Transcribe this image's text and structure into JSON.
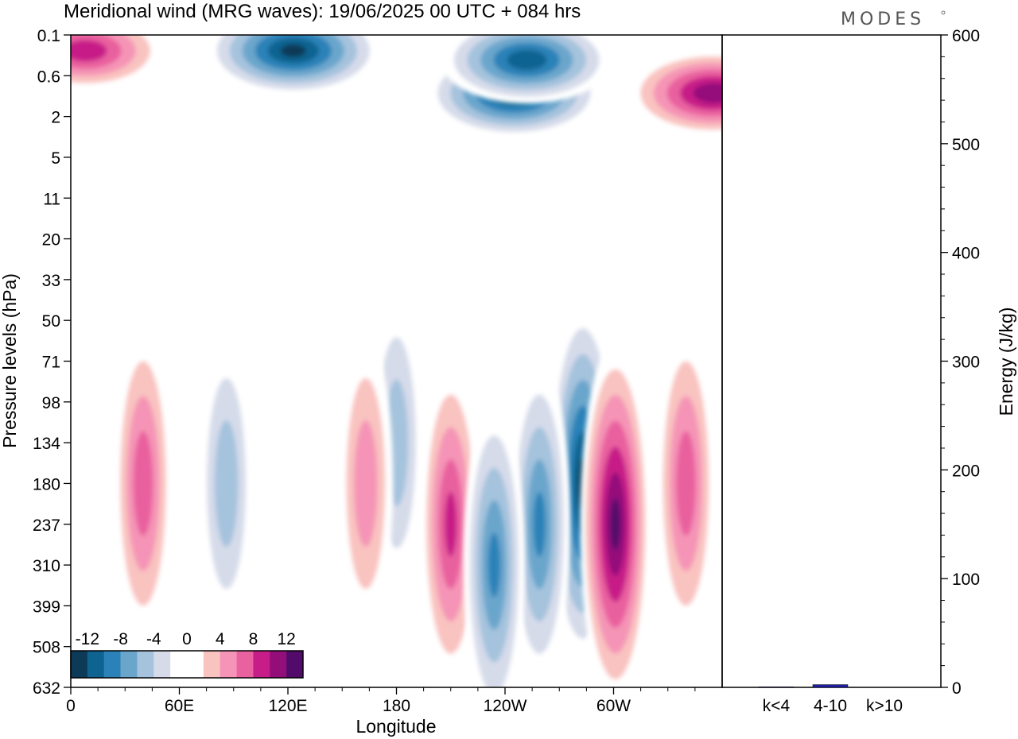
{
  "title": "Meridional wind (MRG waves):  19/06/2025  00 UTC  + 084 hrs",
  "logo": "MODES",
  "chart_data": [
    {
      "type": "heatmap",
      "xlabel": "Longitude",
      "ylabel": "Pressure levels (hPa)",
      "x_tick_labels": [
        "0",
        "60E",
        "120E",
        "180",
        "120W",
        "60W"
      ],
      "y_tick_labels": [
        "0.1",
        "0.6",
        "2",
        "5",
        "11",
        "20",
        "33",
        "50",
        "71",
        "98",
        "134",
        "180",
        "237",
        "310",
        "399",
        "508",
        "632"
      ],
      "colorbar": {
        "labels": [
          "-12",
          "-8",
          "-4",
          "0",
          "4",
          "8",
          "12"
        ],
        "colors": [
          "#0d3b57",
          "#0f6391",
          "#2b82b8",
          "#6aa6cc",
          "#a5c3dd",
          "#d6dbea",
          "#ffffff",
          "#ffffff",
          "#f9c3c0",
          "#f594b6",
          "#e9619f",
          "#c71d88",
          "#940e7a",
          "#520b6b"
        ]
      },
      "features": [
        {
          "sign": "negative",
          "lon": 283,
          "level": 180,
          "value": -13
        },
        {
          "sign": "positive",
          "lon": 301,
          "level": 237,
          "value": 13
        },
        {
          "sign": "negative",
          "lon": 259,
          "level": 237,
          "value": -9
        },
        {
          "sign": "positive",
          "lon": 210,
          "level": 237,
          "value": 9
        },
        {
          "sign": "negative",
          "lon": 234,
          "level": 310,
          "value": -9
        },
        {
          "sign": "positive",
          "lon": 340,
          "level": 180,
          "value": 8
        },
        {
          "sign": "negative",
          "lon": 180,
          "level": 134,
          "value": -6
        },
        {
          "sign": "positive",
          "lon": 163,
          "level": 180,
          "value": 6
        },
        {
          "sign": "positive",
          "lon": 40,
          "level": 180,
          "value": 8
        },
        {
          "sign": "negative",
          "lon": 86,
          "level": 180,
          "value": -6
        },
        {
          "sign": "negative",
          "lon": 123,
          "level": 0.2,
          "value": -13
        },
        {
          "sign": "negative",
          "lon": 245,
          "level": 1,
          "value": -13
        },
        {
          "sign": "negative",
          "lon": 252,
          "level": 0.3,
          "value": -12
        },
        {
          "sign": "positive",
          "lon": 355,
          "level": 1,
          "value": 12
        },
        {
          "sign": "positive",
          "lon": 8,
          "level": 0.2,
          "value": 10
        }
      ]
    },
    {
      "type": "bar",
      "categories": [
        "k<4",
        "4-10",
        "k>10"
      ],
      "values": [
        0.5,
        2.5,
        0
      ],
      "ylabel": "Energy (J/kg)",
      "ylim": [
        0,
        600
      ],
      "yticks": [
        "0",
        "100",
        "200",
        "300",
        "400",
        "500",
        "600"
      ],
      "bar_color": "#1f1fa8"
    }
  ]
}
